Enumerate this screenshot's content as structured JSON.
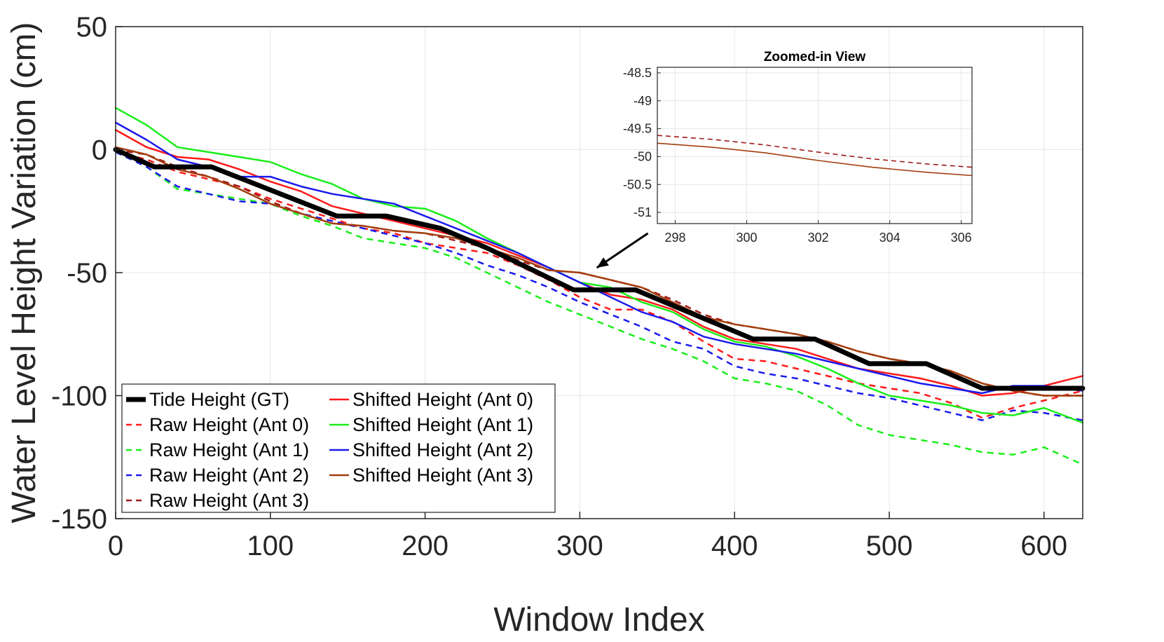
{
  "chart_data": {
    "type": "line",
    "xlabel": "Window Index",
    "ylabel": "Water Level Height Variation (cm)",
    "xlim": [
      0,
      625
    ],
    "ylim": [
      -150,
      50
    ],
    "xticks": [
      0,
      100,
      200,
      300,
      400,
      500,
      600
    ],
    "yticks": [
      -150,
      -100,
      -50,
      0,
      50
    ],
    "xtick_labels": [
      "0",
      "100",
      "200",
      "300",
      "400",
      "500",
      "600"
    ],
    "ytick_labels": [
      "-150",
      "-100",
      "-50",
      "0",
      "50"
    ],
    "grid": true,
    "legend_position": "bottom-left",
    "series": [
      {
        "name": "Tide Height (GT)",
        "color": "#000000",
        "dash": "solid",
        "width": 7,
        "legend_col": 0,
        "legend_row": 0,
        "x": [
          0,
          25,
          62,
          143,
          175,
          210,
          240,
          296,
          336,
          412,
          452,
          487,
          524,
          560,
          625
        ],
        "y": [
          0,
          -7,
          -7,
          -27,
          -27,
          -32,
          -40,
          -57,
          -57,
          -77,
          -77,
          -87,
          -87,
          -97,
          -97
        ]
      },
      {
        "name": "Raw Height (Ant 0)",
        "color": "#ff1a1a",
        "dash": "dash",
        "width": 2.5,
        "legend_col": 0,
        "legend_row": 1,
        "x": [
          0,
          20,
          40,
          60,
          80,
          100,
          120,
          140,
          160,
          180,
          200,
          220,
          240,
          260,
          280,
          300,
          320,
          340,
          360,
          380,
          400,
          420,
          440,
          460,
          480,
          500,
          520,
          540,
          560,
          580,
          600,
          625
        ],
        "y": [
          -1,
          -4,
          -9,
          -12,
          -15,
          -20,
          -24,
          -28,
          -32,
          -34,
          -38,
          -40,
          -42,
          -47,
          -53,
          -60,
          -65,
          -65,
          -70,
          -78,
          -85,
          -86,
          -89,
          -92,
          -95,
          -97,
          -99,
          -103,
          -109,
          -105,
          -102,
          -98
        ]
      },
      {
        "name": "Raw Height (Ant 1)",
        "color": "#1aee1a",
        "dash": "dash",
        "width": 2.5,
        "legend_col": 0,
        "legend_row": 2,
        "x": [
          0,
          20,
          40,
          60,
          80,
          100,
          120,
          140,
          160,
          180,
          200,
          220,
          240,
          260,
          280,
          300,
          320,
          340,
          360,
          380,
          400,
          420,
          440,
          460,
          480,
          500,
          520,
          540,
          560,
          580,
          600,
          625
        ],
        "y": [
          -1,
          -7,
          -16,
          -18,
          -20,
          -22,
          -27,
          -31,
          -36,
          -38,
          -40,
          -44,
          -50,
          -56,
          -62,
          -67,
          -72,
          -77,
          -81,
          -86,
          -93,
          -95,
          -98,
          -104,
          -112,
          -116,
          -118,
          -120,
          -123,
          -124,
          -121,
          -128
        ]
      },
      {
        "name": "Raw Height (Ant 2)",
        "color": "#1a1aee",
        "dash": "dash",
        "width": 2.5,
        "legend_col": 0,
        "legend_row": 3,
        "x": [
          0,
          20,
          40,
          60,
          80,
          100,
          120,
          140,
          160,
          180,
          200,
          220,
          240,
          260,
          280,
          300,
          320,
          340,
          360,
          380,
          400,
          420,
          440,
          460,
          480,
          500,
          520,
          540,
          560,
          580,
          600,
          625
        ],
        "y": [
          -1,
          -7,
          -15,
          -18,
          -21,
          -22,
          -26,
          -29,
          -32,
          -35,
          -38,
          -42,
          -47,
          -51,
          -56,
          -62,
          -67,
          -72,
          -78,
          -81,
          -88,
          -91,
          -93,
          -96,
          -99,
          -101,
          -104,
          -107,
          -110,
          -106,
          -107,
          -110
        ]
      },
      {
        "name": "Raw Height (Ant 3)",
        "color": "#a11919",
        "dash": "dash",
        "width": 2.5,
        "legend_col": 0,
        "legend_row": 4,
        "x": [
          0,
          20,
          40,
          60,
          80,
          100,
          120,
          140,
          160,
          180,
          200,
          220,
          240,
          260,
          280,
          300,
          320,
          340,
          360,
          380,
          400,
          420,
          440,
          460,
          480,
          500,
          520,
          540,
          560,
          580,
          600,
          625
        ],
        "y": [
          0,
          -2,
          -7,
          -11,
          -15,
          -21,
          -26,
          -30,
          -31,
          -33,
          -34,
          -37,
          -40,
          -45,
          -49,
          -50,
          -53,
          -56,
          -61,
          -67,
          -71,
          -73,
          -75,
          -78,
          -82,
          -85,
          -87,
          -90,
          -95,
          -98,
          -100,
          -100
        ]
      },
      {
        "name": "Shifted Height (Ant 0)",
        "color": "#ff1a1a",
        "dash": "solid",
        "width": 2.5,
        "legend_col": 1,
        "legend_row": 0,
        "x": [
          0,
          20,
          40,
          60,
          80,
          100,
          120,
          140,
          160,
          180,
          200,
          220,
          240,
          260,
          280,
          300,
          320,
          340,
          360,
          380,
          400,
          420,
          440,
          460,
          480,
          500,
          520,
          540,
          560,
          580,
          600,
          625
        ],
        "y": [
          8,
          1,
          -3,
          -4,
          -8,
          -13,
          -17,
          -23,
          -26,
          -29,
          -32,
          -35,
          -38,
          -43,
          -48,
          -54,
          -59,
          -61,
          -65,
          -72,
          -77,
          -79,
          -81,
          -85,
          -89,
          -91,
          -93,
          -96,
          -100,
          -99,
          -96,
          -92
        ]
      },
      {
        "name": "Shifted Height (Ant 1)",
        "color": "#1aee1a",
        "dash": "solid",
        "width": 2.5,
        "legend_col": 1,
        "legend_row": 1,
        "x": [
          0,
          20,
          40,
          60,
          80,
          100,
          120,
          140,
          160,
          180,
          200,
          220,
          240,
          260,
          280,
          300,
          320,
          340,
          360,
          380,
          400,
          420,
          440,
          460,
          480,
          500,
          520,
          540,
          560,
          580,
          600,
          625
        ],
        "y": [
          17,
          10,
          1,
          -1,
          -3,
          -5,
          -10,
          -14,
          -20,
          -23,
          -24,
          -29,
          -36,
          -42,
          -48,
          -54,
          -56,
          -62,
          -66,
          -73,
          -78,
          -80,
          -84,
          -89,
          -95,
          -100,
          -102,
          -104,
          -107,
          -108,
          -105,
          -111
        ]
      },
      {
        "name": "Shifted Height (Ant 2)",
        "color": "#1a1aee",
        "dash": "solid",
        "width": 2.5,
        "legend_col": 1,
        "legend_row": 2,
        "x": [
          0,
          20,
          40,
          60,
          80,
          100,
          120,
          140,
          160,
          180,
          200,
          220,
          240,
          260,
          280,
          300,
          320,
          340,
          360,
          380,
          400,
          420,
          440,
          460,
          480,
          500,
          520,
          540,
          560,
          580,
          600,
          625
        ],
        "y": [
          11,
          4,
          -4,
          -7,
          -11,
          -11,
          -15,
          -18,
          -20,
          -22,
          -27,
          -32,
          -37,
          -42,
          -48,
          -54,
          -60,
          -66,
          -70,
          -76,
          -79,
          -81,
          -83,
          -86,
          -89,
          -92,
          -95,
          -97,
          -99,
          -96,
          -96,
          -98
        ]
      },
      {
        "name": "Shifted Height (Ant 3)",
        "color": "#a33d0d",
        "dash": "solid",
        "width": 2.5,
        "legend_col": 1,
        "legend_row": 3,
        "x": [
          0,
          20,
          40,
          60,
          80,
          100,
          120,
          140,
          160,
          180,
          200,
          220,
          240,
          260,
          280,
          300,
          320,
          340,
          360,
          380,
          400,
          420,
          440,
          460,
          480,
          500,
          520,
          540,
          560,
          580,
          600,
          625
        ],
        "y": [
          1,
          -2,
          -8,
          -11,
          -16,
          -22,
          -26,
          -30,
          -31,
          -33,
          -34,
          -36,
          -40,
          -44,
          -49,
          -50,
          -53,
          -56,
          -62,
          -68,
          -71,
          -73,
          -75,
          -78,
          -82,
          -85,
          -87,
          -90,
          -95,
          -98,
          -100,
          -100
        ]
      }
    ],
    "annotation": {
      "type": "arrow",
      "from": [
        344,
        -34
      ],
      "to": [
        311,
        -48
      ]
    },
    "inset": {
      "title": "Zoomed-in View",
      "xlim": [
        297.5,
        306.3
      ],
      "ylim": [
        -51.2,
        -48.4
      ],
      "xticks": [
        298,
        300,
        302,
        304,
        306
      ],
      "yticks": [
        -51,
        -50.5,
        -50,
        -49.5,
        -49,
        -48.5
      ],
      "xtick_labels": [
        "298",
        "300",
        "302",
        "304",
        "306"
      ],
      "ytick_labels": [
        "-51",
        "-50.5",
        "-50",
        "-49.5",
        "-49",
        "-48.5"
      ],
      "series": [
        {
          "name": "Raw Height (Ant 3)",
          "color": "#a11919",
          "dash": "dash",
          "width": 1.6,
          "x": [
            297.5,
            299,
            300.5,
            302,
            303.5,
            305,
            306.3
          ],
          "y": [
            -49.62,
            -49.69,
            -49.79,
            -49.92,
            -50.04,
            -50.13,
            -50.19
          ]
        },
        {
          "name": "Shifted Height (Ant 3)",
          "color": "#a33d0d",
          "dash": "solid",
          "width": 1.6,
          "x": [
            297.5,
            299,
            300.5,
            302,
            303.5,
            305,
            306.3
          ],
          "y": [
            -49.76,
            -49.83,
            -49.93,
            -50.07,
            -50.19,
            -50.28,
            -50.34
          ]
        }
      ]
    }
  }
}
